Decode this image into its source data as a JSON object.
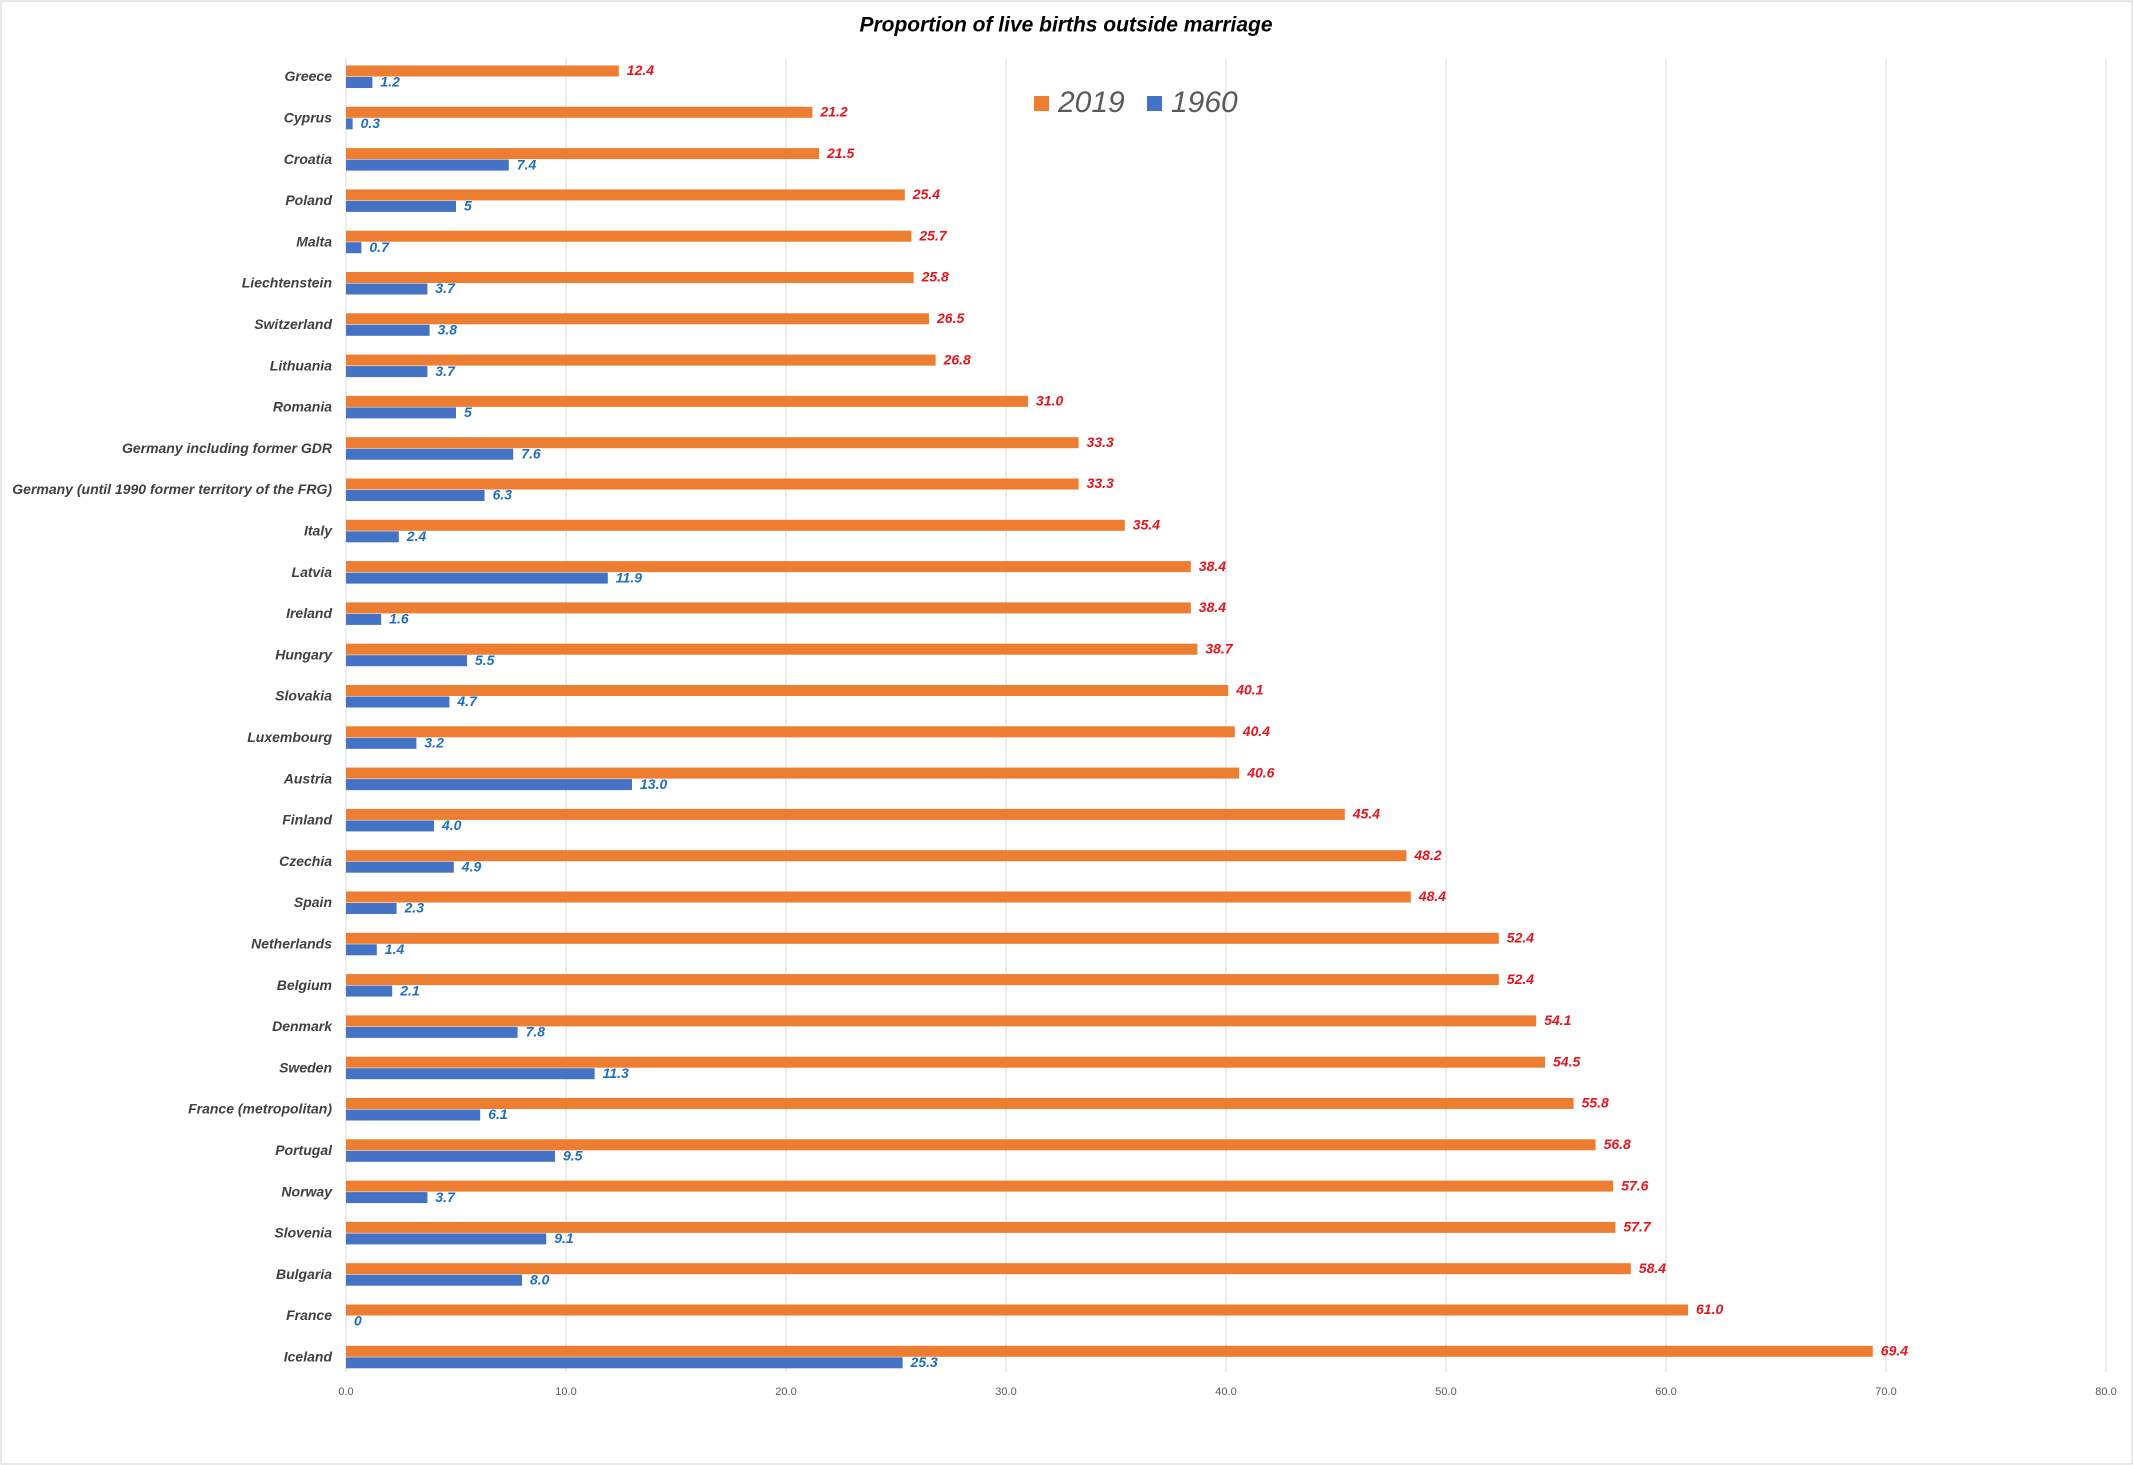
{
  "chart_data": {
    "type": "barh",
    "title": "Proportion of live births outside marriage",
    "categories": [
      "Greece",
      "Cyprus",
      "Croatia",
      "Poland",
      "Malta",
      "Liechtenstein",
      "Switzerland",
      "Lithuania",
      "Romania",
      "Germany including former GDR",
      "Germany (until 1990 former territory of the FRG)",
      "Italy",
      "Latvia",
      "Ireland",
      "Hungary",
      "Slovakia",
      "Luxembourg",
      "Austria",
      "Finland",
      "Czechia",
      "Spain",
      "Netherlands",
      "Belgium",
      "Denmark",
      "Sweden",
      "France (metropolitan)",
      "Portugal",
      "Norway",
      "Slovenia",
      "Bulgaria",
      "France",
      "Iceland"
    ],
    "series": [
      {
        "name": "2019",
        "color": "#ed7d31",
        "values": [
          12.4,
          21.2,
          21.5,
          25.4,
          25.7,
          25.8,
          26.5,
          26.8,
          31.0,
          33.3,
          33.3,
          35.4,
          38.4,
          38.4,
          38.7,
          40.1,
          40.4,
          40.6,
          45.4,
          48.2,
          48.4,
          52.4,
          52.4,
          54.1,
          54.5,
          55.8,
          56.8,
          57.6,
          57.7,
          58.4,
          61.0,
          69.4
        ],
        "value_labels": [
          "12.4",
          "21.2",
          "21.5",
          "25.4",
          "25.7",
          "25.8",
          "26.5",
          "26.8",
          "31.0",
          "33.3",
          "33.3",
          "35.4",
          "38.4",
          "38.4",
          "38.7",
          "40.1",
          "40.4",
          "40.6",
          "45.4",
          "48.2",
          "48.4",
          "52.4",
          "52.4",
          "54.1",
          "54.5",
          "55.8",
          "56.8",
          "57.6",
          "57.7",
          "58.4",
          "61.0",
          "69.4"
        ],
        "label_color": "#e8141c"
      },
      {
        "name": "1960",
        "color": "#4472c4",
        "values": [
          1.2,
          0.3,
          7.4,
          5,
          0.7,
          3.7,
          3.8,
          3.7,
          5,
          7.6,
          6.3,
          2.4,
          11.9,
          1.6,
          5.5,
          4.7,
          3.2,
          13.0,
          4.0,
          4.9,
          2.3,
          1.4,
          2.1,
          7.8,
          11.3,
          6.1,
          9.5,
          3.7,
          9.1,
          8.0,
          0,
          25.3
        ],
        "value_labels": [
          "1.2",
          "0.3",
          "7.4",
          "5",
          "0.7",
          "3.7",
          "3.8",
          "3.7",
          "5",
          "7.6",
          "6.3",
          "2.4",
          "11.9",
          "1.6",
          "5.5",
          "4.7",
          "3.2",
          "13.0",
          "4.0",
          "4.9",
          "2.3",
          "1.4",
          "2.1",
          "7.8",
          "11.3",
          "6.1",
          "9.5",
          "3.7",
          "9.1",
          "8.0",
          "0",
          "25.3"
        ],
        "label_color": "#1f6fbf"
      }
    ],
    "xlim": [
      0,
      80
    ],
    "xticks": [
      {
        "value": 0,
        "label": "0.0"
      },
      {
        "value": 10,
        "label": "10.0"
      },
      {
        "value": 20,
        "label": "20.0"
      },
      {
        "value": 30,
        "label": "30.0"
      },
      {
        "value": 40,
        "label": "40.0"
      },
      {
        "value": 50,
        "label": "50.0"
      },
      {
        "value": 60,
        "label": "60.0"
      },
      {
        "value": 70,
        "label": "70.0"
      },
      {
        "value": 80,
        "label": "80.0"
      }
    ],
    "grid": true,
    "legend": "top"
  }
}
